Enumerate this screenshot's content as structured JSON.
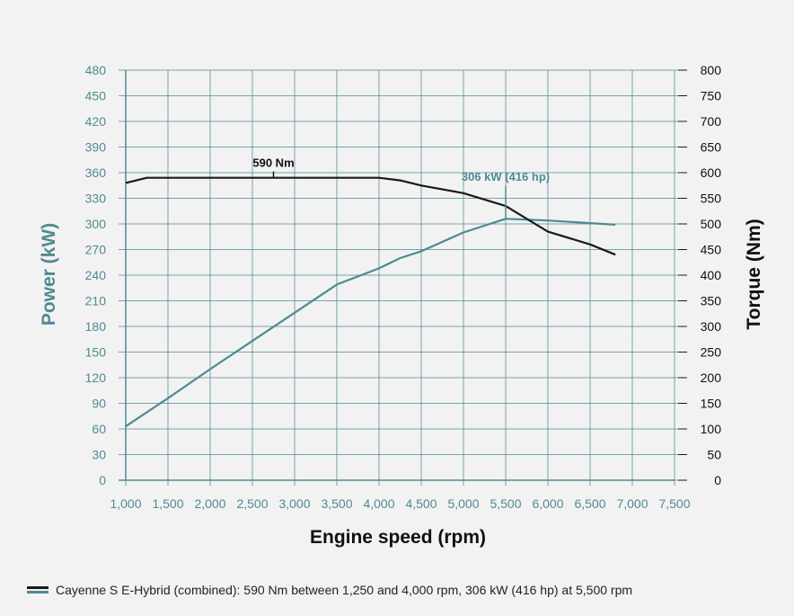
{
  "colors": {
    "power": "#4f8a93",
    "torque": "#1a1a1a",
    "grid": "#4f8a93",
    "background": "#f2f2f2"
  },
  "chart_data": {
    "type": "line",
    "xlabel": "Engine speed (rpm)",
    "ylabel": "Power (kW)",
    "y2label": "Torque (Nm)",
    "x_ticks": [
      1000,
      1500,
      2000,
      2500,
      3000,
      3500,
      4000,
      4500,
      5000,
      5500,
      6000,
      6500,
      7000,
      7500
    ],
    "x_tick_labels": [
      "1,000",
      "1,500",
      "2,000",
      "2,500",
      "3,000",
      "3,500",
      "4,000",
      "4,500",
      "5,000",
      "5,500",
      "6,000",
      "6,500",
      "7,000",
      "7,500"
    ],
    "xlim": [
      1000,
      7500
    ],
    "ylim": [
      0,
      480
    ],
    "y_ticks": [
      0,
      30,
      60,
      90,
      120,
      150,
      180,
      210,
      240,
      270,
      300,
      330,
      360,
      390,
      420,
      450,
      480
    ],
    "y2lim": [
      0,
      800
    ],
    "y2_ticks": [
      0,
      50,
      100,
      150,
      200,
      250,
      300,
      350,
      400,
      450,
      500,
      550,
      600,
      650,
      700,
      750,
      800
    ],
    "grid": true,
    "series": [
      {
        "name": "Power",
        "axis": "left",
        "x": [
          1000,
          1500,
          2000,
          2500,
          3000,
          3500,
          4000,
          4250,
          4500,
          5000,
          5500,
          6000,
          6500,
          6800
        ],
        "y": [
          63,
          96,
          130,
          163,
          196,
          229,
          248,
          260,
          268,
          290,
          306,
          304,
          301,
          299
        ]
      },
      {
        "name": "Torque",
        "axis": "right",
        "x": [
          1000,
          1250,
          1500,
          2000,
          2500,
          3000,
          3500,
          4000,
          4250,
          4500,
          5000,
          5500,
          6000,
          6500,
          6800
        ],
        "y": [
          580,
          590,
          590,
          590,
          590,
          590,
          590,
          590,
          585,
          575,
          560,
          535,
          485,
          460,
          440
        ]
      }
    ],
    "annotations": [
      {
        "text": "590 Nm",
        "series": "Torque",
        "x": 2750,
        "y": 590
      },
      {
        "text": "306 kW (416 hp)",
        "series": "Power",
        "x": 5500,
        "y": 306
      }
    ],
    "legend": {
      "placement": "bottom-left",
      "entries": [
        "Cayenne S E-Hybrid (combined): 590 Nm between 1,250 and 4,000 rpm, 306 kW (416 hp) at 5,500 rpm"
      ]
    }
  }
}
